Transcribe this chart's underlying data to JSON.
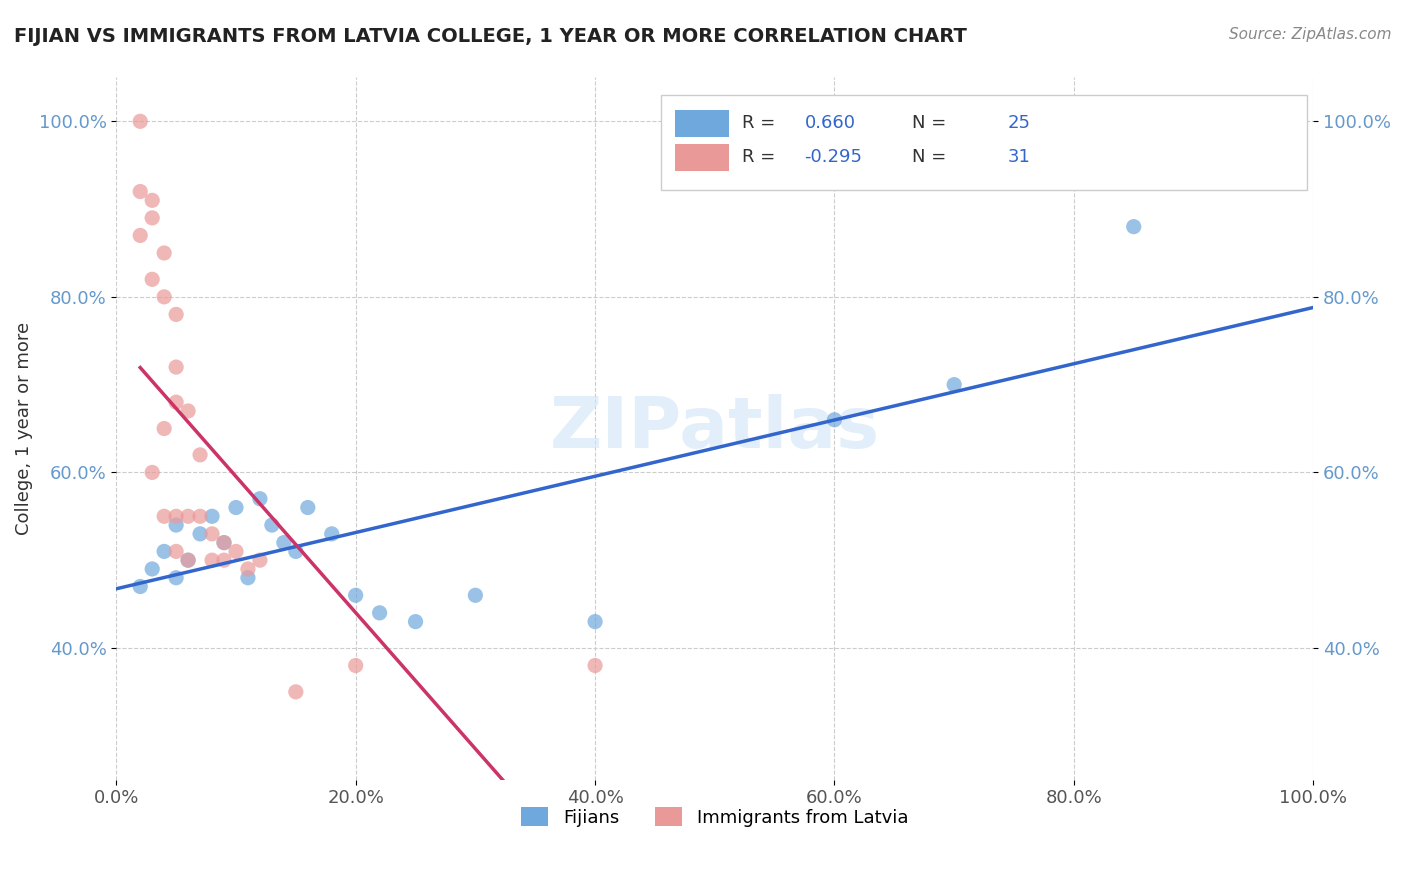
{
  "title": "FIJIAN VS IMMIGRANTS FROM LATVIA COLLEGE, 1 YEAR OR MORE CORRELATION CHART",
  "source_text": "Source: ZipAtlas.com",
  "xlabel": "",
  "ylabel": "College, 1 year or more",
  "xlim": [
    0.0,
    1.0
  ],
  "ylim": [
    0.25,
    1.05
  ],
  "x_tick_labels": [
    "0.0%",
    "20.0%",
    "40.0%",
    "60.0%",
    "80.0%",
    "100.0%"
  ],
  "x_tick_vals": [
    0.0,
    0.2,
    0.4,
    0.6,
    0.8,
    1.0
  ],
  "y_tick_labels": [
    "40.0%",
    "60.0%",
    "80.0%",
    "100.0%"
  ],
  "y_tick_vals": [
    0.4,
    0.6,
    0.8,
    1.0
  ],
  "blue_R": 0.66,
  "blue_N": 25,
  "pink_R": -0.295,
  "pink_N": 31,
  "blue_color": "#6fa8dc",
  "pink_color": "#ea9999",
  "blue_line_color": "#3366cc",
  "pink_line_color": "#cc3366",
  "grid_color": "#cccccc",
  "background_color": "#ffffff",
  "watermark_text": "ZIPatlas",
  "blue_points_x": [
    0.02,
    0.03,
    0.04,
    0.05,
    0.05,
    0.06,
    0.07,
    0.08,
    0.09,
    0.1,
    0.11,
    0.12,
    0.13,
    0.14,
    0.15,
    0.16,
    0.18,
    0.2,
    0.22,
    0.25,
    0.3,
    0.4,
    0.6,
    0.7,
    0.85
  ],
  "blue_points_y": [
    0.47,
    0.49,
    0.51,
    0.48,
    0.54,
    0.5,
    0.53,
    0.55,
    0.52,
    0.56,
    0.48,
    0.57,
    0.54,
    0.52,
    0.51,
    0.56,
    0.53,
    0.46,
    0.44,
    0.43,
    0.46,
    0.43,
    0.66,
    0.7,
    0.88
  ],
  "pink_points_x": [
    0.02,
    0.02,
    0.02,
    0.03,
    0.03,
    0.03,
    0.03,
    0.04,
    0.04,
    0.04,
    0.04,
    0.05,
    0.05,
    0.05,
    0.05,
    0.05,
    0.06,
    0.06,
    0.06,
    0.07,
    0.07,
    0.08,
    0.08,
    0.09,
    0.09,
    0.1,
    0.11,
    0.12,
    0.15,
    0.2,
    0.4
  ],
  "pink_points_y": [
    1.0,
    0.92,
    0.87,
    0.91,
    0.89,
    0.82,
    0.6,
    0.85,
    0.8,
    0.65,
    0.55,
    0.78,
    0.72,
    0.68,
    0.55,
    0.51,
    0.67,
    0.55,
    0.5,
    0.62,
    0.55,
    0.53,
    0.5,
    0.52,
    0.5,
    0.51,
    0.49,
    0.5,
    0.35,
    0.38,
    0.38
  ],
  "legend_label_blue": "Fijians",
  "legend_label_pink": "Immigrants from Latvia"
}
